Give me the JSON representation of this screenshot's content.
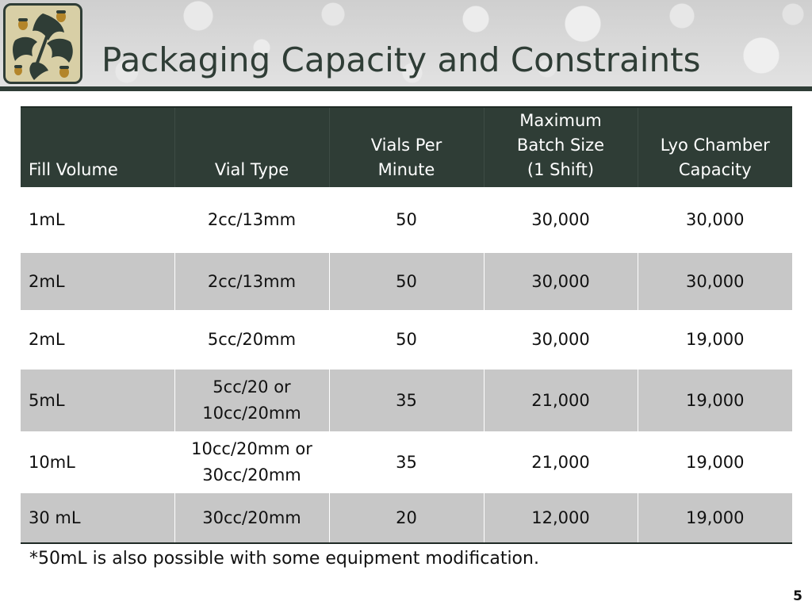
{
  "slide": {
    "title": "Packaging Capacity and Constraints",
    "page_number": "5",
    "footnote": "*50mL is also possible with some equipment modification."
  },
  "table": {
    "columns": [
      {
        "lines": [
          "Fill Volume"
        ]
      },
      {
        "lines": [
          "Vial Type"
        ]
      },
      {
        "lines": [
          "Vials Per",
          "Minute"
        ]
      },
      {
        "lines": [
          "Maximum",
          "Batch Size",
          "(1 Shift)"
        ]
      },
      {
        "lines": [
          "Lyo Chamber",
          "Capacity"
        ]
      }
    ],
    "rows": [
      {
        "fill_volume": "1mL",
        "vial_type": [
          "2cc/13mm"
        ],
        "vials_per_minute": "50",
        "max_batch_size": "30,000",
        "lyo_capacity": "30,000"
      },
      {
        "fill_volume": "2mL",
        "vial_type": [
          "2cc/13mm"
        ],
        "vials_per_minute": "50",
        "max_batch_size": "30,000",
        "lyo_capacity": "30,000"
      },
      {
        "fill_volume": "2mL",
        "vial_type": [
          "5cc/20mm"
        ],
        "vials_per_minute": "50",
        "max_batch_size": "30,000",
        "lyo_capacity": "19,000"
      },
      {
        "fill_volume": "5mL",
        "vial_type": [
          "5cc/20 or",
          "10cc/20mm"
        ],
        "vials_per_minute": "35",
        "max_batch_size": "21,000",
        "lyo_capacity": "19,000"
      },
      {
        "fill_volume": "10mL",
        "vial_type": [
          "10cc/20mm or",
          "30cc/20mm"
        ],
        "vials_per_minute": "35",
        "max_batch_size": "21,000",
        "lyo_capacity": "19,000"
      },
      {
        "fill_volume": "30 mL",
        "vial_type": [
          "30cc/20mm"
        ],
        "vials_per_minute": "20",
        "max_batch_size": "12,000",
        "lyo_capacity": "19,000"
      }
    ]
  },
  "colors": {
    "header_dark": "#2f3d36",
    "row_stripe": "#c7c7c7",
    "logo_background": "#d8cfa6"
  },
  "logo": {
    "icon": "oak-leaf-acorn-icon"
  }
}
